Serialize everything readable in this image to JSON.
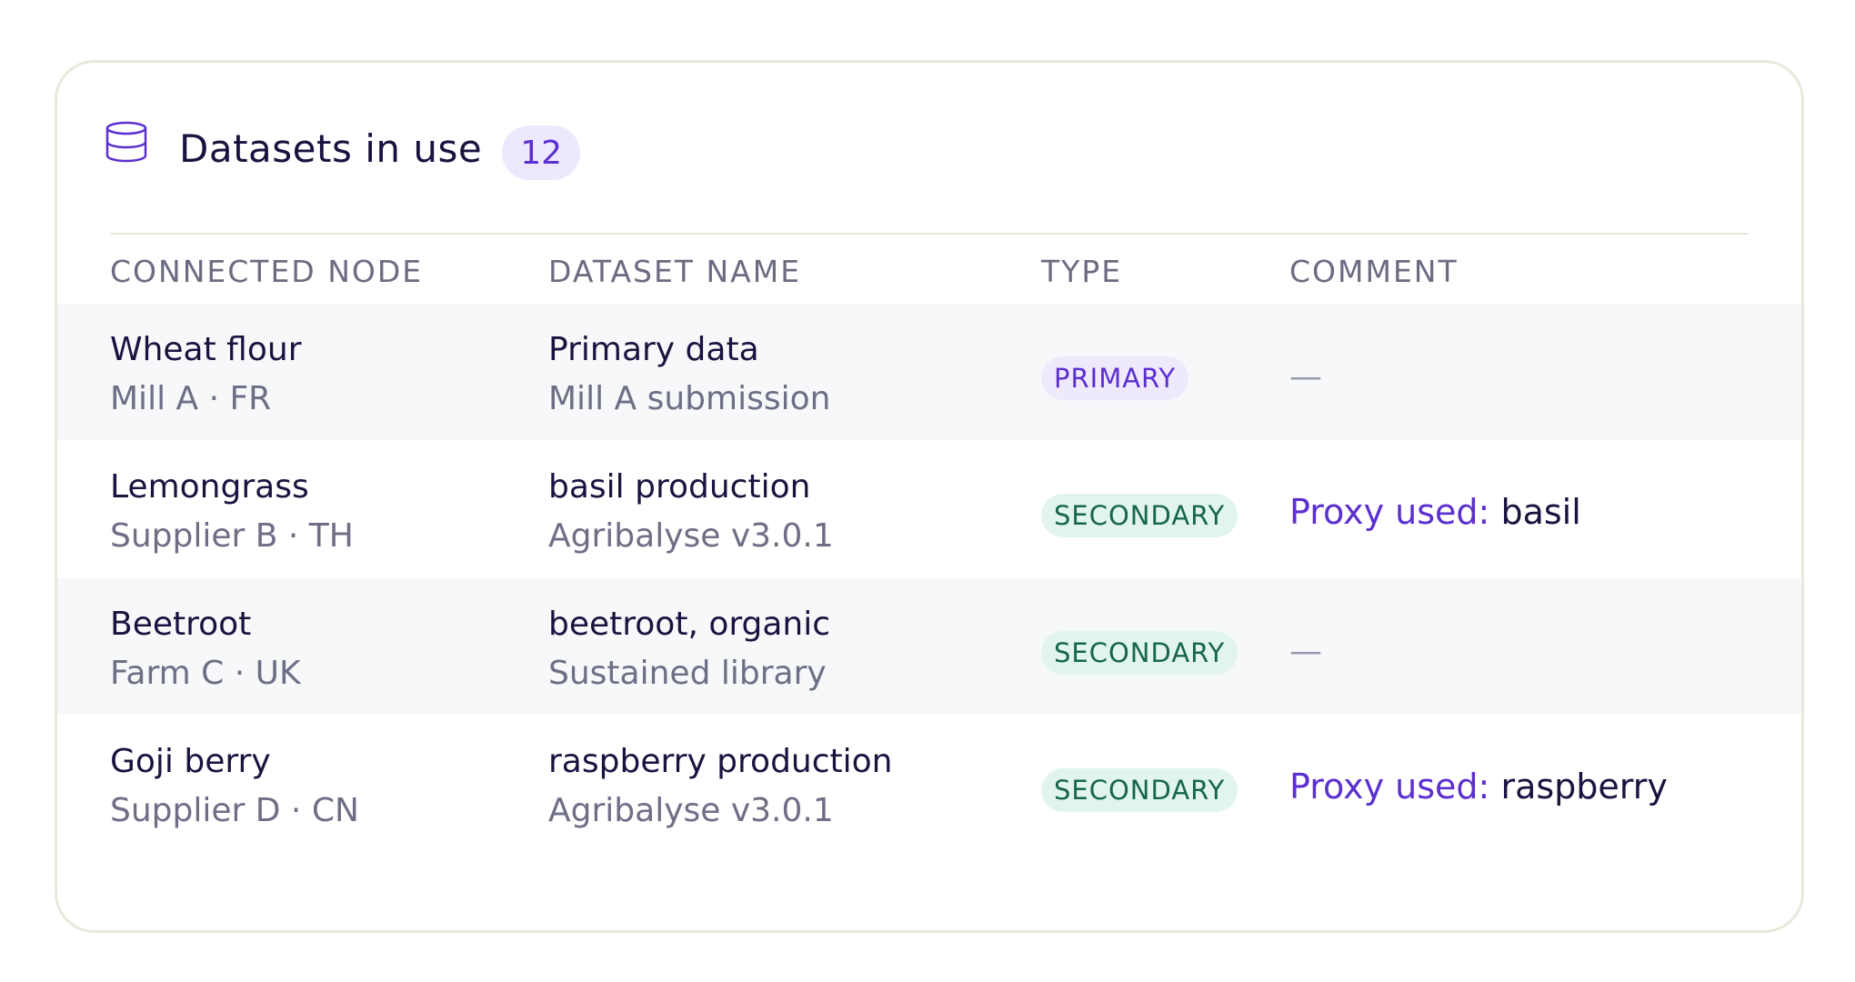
{
  "panel": {
    "title": "Datasets in use",
    "count": "12",
    "icon": "database-icon"
  },
  "columns": {
    "node": "CONNECTED NODE",
    "dataset": "DATASET NAME",
    "type": "TYPE",
    "comment": "COMMENT"
  },
  "rows": [
    {
      "node": "Wheat flour",
      "node_sub": "Mill A · FR",
      "dataset": "Primary data",
      "dataset_sub": "Mill A submission",
      "type": "PRIMARY",
      "comment_label": "",
      "comment_value": "",
      "comment_empty": "—"
    },
    {
      "node": "Lemongrass",
      "node_sub": "Supplier B · TH",
      "dataset": "basil production",
      "dataset_sub": "Agribalyse v3.0.1",
      "type": "SECONDARY",
      "comment_label": "Proxy used:",
      "comment_value": "basil",
      "comment_empty": ""
    },
    {
      "node": "Beetroot",
      "node_sub": "Farm C · UK",
      "dataset": "beetroot, organic",
      "dataset_sub": "Sustained library",
      "type": "SECONDARY",
      "comment_label": "",
      "comment_value": "",
      "comment_empty": "—"
    },
    {
      "node": "Goji berry",
      "node_sub": "Supplier D · CN",
      "dataset": "raspberry production",
      "dataset_sub": "Agribalyse v3.0.1",
      "type": "SECONDARY",
      "comment_label": "Proxy used:",
      "comment_value": "raspberry",
      "comment_empty": ""
    }
  ],
  "colors": {
    "accent": "#5b2fd0",
    "primary_badge_bg": "#efe9fc",
    "secondary_badge_bg": "#e2f5ed",
    "secondary_badge_text": "#16664a"
  }
}
